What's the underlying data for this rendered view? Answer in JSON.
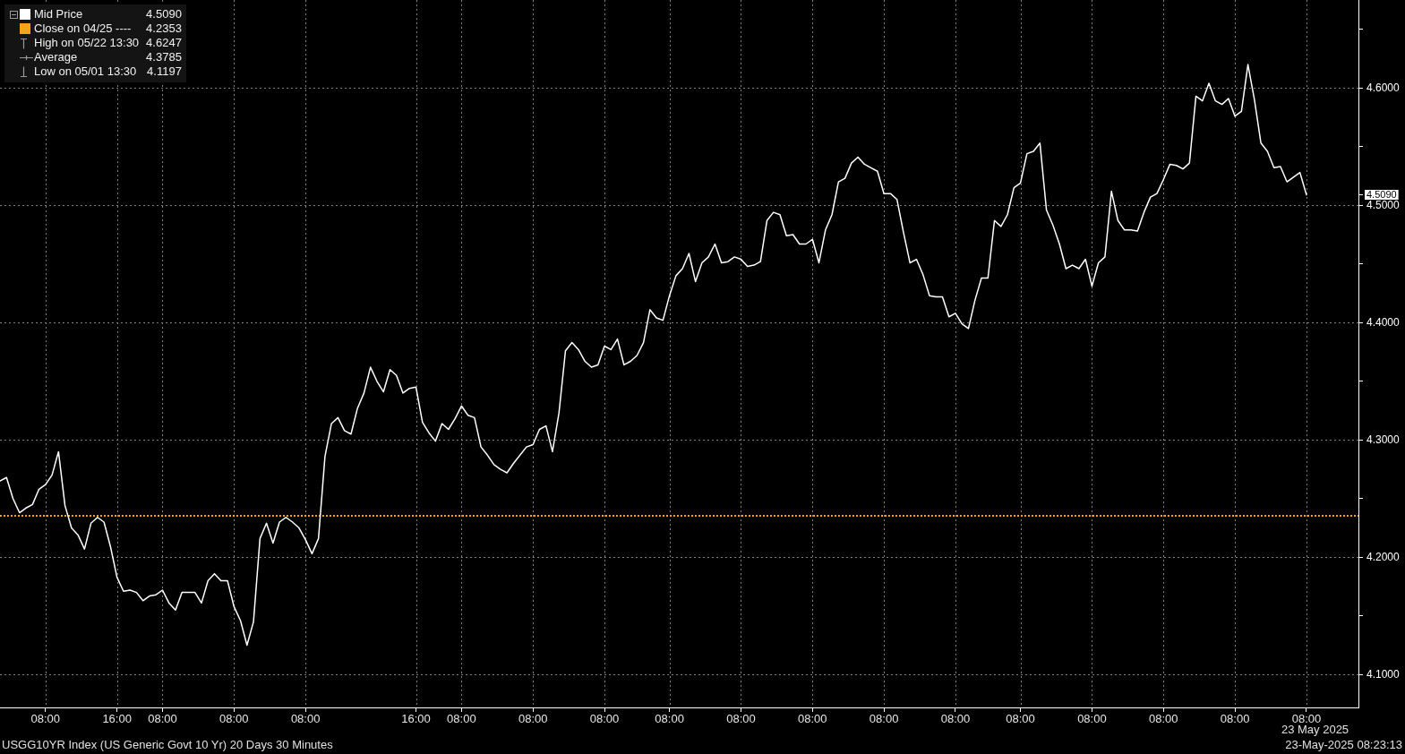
{
  "chart_data": {
    "type": "line",
    "title": "USGG10YR Index (US Generic Govt 10 Yr) 20 Days 30 Minutes",
    "categories": [
      null,
      null,
      null,
      null,
      null,
      null,
      null,
      "08:00",
      null,
      null,
      null,
      null,
      null,
      null,
      null,
      null,
      null,
      null,
      "16:00",
      null,
      null,
      null,
      null,
      null,
      null,
      "08:00",
      null,
      null,
      null,
      null,
      null,
      null,
      null,
      null,
      null,
      null,
      "08:00",
      null,
      null,
      null,
      null,
      null,
      null,
      null,
      null,
      null,
      null,
      "08:00",
      null,
      null,
      null,
      null,
      null,
      null,
      null,
      null,
      null,
      null,
      null,
      null,
      null,
      null,
      null,
      null,
      "16:00",
      null,
      null,
      null,
      null,
      null,
      null,
      "08:00",
      null,
      null,
      null,
      null,
      null,
      null,
      null,
      null,
      null,
      null,
      "08:00",
      null,
      null,
      null,
      null,
      null,
      null,
      null,
      null,
      null,
      null,
      "08:00",
      null,
      null,
      null,
      null,
      null,
      null,
      null,
      null,
      null,
      "08:00",
      null,
      null,
      null,
      null,
      null,
      null,
      null,
      null,
      null,
      null,
      "08:00",
      null,
      null,
      null,
      null,
      null,
      null,
      null,
      null,
      null,
      null,
      "08:00",
      null,
      null,
      null,
      null,
      null,
      null,
      null,
      null,
      null,
      null,
      "08:00",
      null,
      null,
      null,
      null,
      null,
      null,
      null,
      null,
      null,
      null,
      "08:00",
      null,
      null,
      null,
      null,
      null,
      null,
      null,
      null,
      null,
      "08:00",
      null,
      null,
      null,
      null,
      null,
      null,
      null,
      null,
      null,
      null,
      "08:00",
      null,
      null,
      null,
      null,
      null,
      null,
      null,
      null,
      null,
      null,
      "08:00",
      null,
      null,
      null,
      null,
      null,
      null,
      null,
      null,
      null,
      null,
      "08:00",
      null,
      null,
      null,
      null,
      null,
      null,
      null,
      null,
      null,
      null,
      "08:00",
      null,
      null,
      null,
      null,
      null,
      null,
      null,
      null
    ],
    "series": [
      {
        "name": "Mid Price",
        "color": "#ffffff",
        "values": [
          4.265,
          4.268,
          4.25,
          4.238,
          4.242,
          4.245,
          4.258,
          4.262,
          4.27,
          4.29,
          4.244,
          4.225,
          4.219,
          4.207,
          4.229,
          4.234,
          4.23,
          4.209,
          4.183,
          4.171,
          4.172,
          4.17,
          4.163,
          4.167,
          4.168,
          4.172,
          4.161,
          4.155,
          4.17,
          4.17,
          4.17,
          4.161,
          4.18,
          4.186,
          4.18,
          4.18,
          4.158,
          4.146,
          4.125,
          4.145,
          4.216,
          4.229,
          4.212,
          4.23,
          4.234,
          4.23,
          4.225,
          4.215,
          4.203,
          4.216,
          4.286,
          4.314,
          4.319,
          4.308,
          4.305,
          4.327,
          4.34,
          4.362,
          4.35,
          4.341,
          4.36,
          4.355,
          4.34,
          4.344,
          4.345,
          4.315,
          4.306,
          4.299,
          4.314,
          4.309,
          4.318,
          4.329,
          4.321,
          4.319,
          4.294,
          4.287,
          4.279,
          4.275,
          4.272,
          4.28,
          4.287,
          4.294,
          4.296,
          4.309,
          4.312,
          4.29,
          4.323,
          4.376,
          4.383,
          4.377,
          4.367,
          4.362,
          4.364,
          4.38,
          4.377,
          4.386,
          4.364,
          4.367,
          4.372,
          4.383,
          4.411,
          4.404,
          4.402,
          4.423,
          4.44,
          4.446,
          4.459,
          4.435,
          4.451,
          4.456,
          4.467,
          4.451,
          4.452,
          4.456,
          4.454,
          4.448,
          4.449,
          4.452,
          4.487,
          4.494,
          4.492,
          4.474,
          4.475,
          4.467,
          4.467,
          4.471,
          4.451,
          4.479,
          4.492,
          4.52,
          4.523,
          4.536,
          4.541,
          4.535,
          4.532,
          4.529,
          4.51,
          4.51,
          4.505,
          4.477,
          4.451,
          4.454,
          4.441,
          4.423,
          4.422,
          4.422,
          4.405,
          4.408,
          4.399,
          4.395,
          4.419,
          4.438,
          4.438,
          4.487,
          4.482,
          4.492,
          4.515,
          4.519,
          4.544,
          4.546,
          4.553,
          4.496,
          4.483,
          4.467,
          4.446,
          4.449,
          4.446,
          4.454,
          4.431,
          4.451,
          4.456,
          4.512,
          4.487,
          4.479,
          4.479,
          4.478,
          4.494,
          4.507,
          4.51,
          4.522,
          4.535,
          4.534,
          4.531,
          4.536,
          4.593,
          4.589,
          4.604,
          4.589,
          4.586,
          4.591,
          4.576,
          4.58,
          4.62,
          4.59,
          4.553,
          4.546,
          4.532,
          4.533,
          4.52,
          4.524,
          4.528,
          4.509,
          null,
          null,
          null,
          null,
          null,
          null,
          null,
          null
        ]
      }
    ],
    "ylim": [
      4.072,
      4.675
    ],
    "yticks": [
      {
        "value": 4.1,
        "label": "4.1000"
      },
      {
        "value": 4.15,
        "label": null
      },
      {
        "value": 4.2,
        "label": "4.2000"
      },
      {
        "value": 4.25,
        "label": null
      },
      {
        "value": 4.3,
        "label": "4.3000"
      },
      {
        "value": 4.35,
        "label": null
      },
      {
        "value": 4.4,
        "label": "4.4000"
      },
      {
        "value": 4.45,
        "label": null
      },
      {
        "value": 4.5,
        "label": "4.5000"
      },
      {
        "value": 4.509,
        "label": "4.5090"
      },
      {
        "value": 4.55,
        "label": null
      },
      {
        "value": 4.6,
        "label": "4.6000"
      },
      {
        "value": 4.65,
        "label": null
      }
    ],
    "ref_lines": [
      {
        "axis": "y",
        "value": 4.2353,
        "label": "Close on 04/25 ---- 4.2353",
        "color": "#f7a21b",
        "line_style": "dotted"
      }
    ],
    "annotations": [
      "High on 05/22 13:30 4.6247",
      "Average 4.3785",
      "Low on 05/01 13:30 4.1197",
      "23 May 2025",
      "23-May-2025 08:23:13"
    ],
    "grid": true,
    "legend": "top left",
    "marker": "none",
    "line_style": "solid"
  }
}
